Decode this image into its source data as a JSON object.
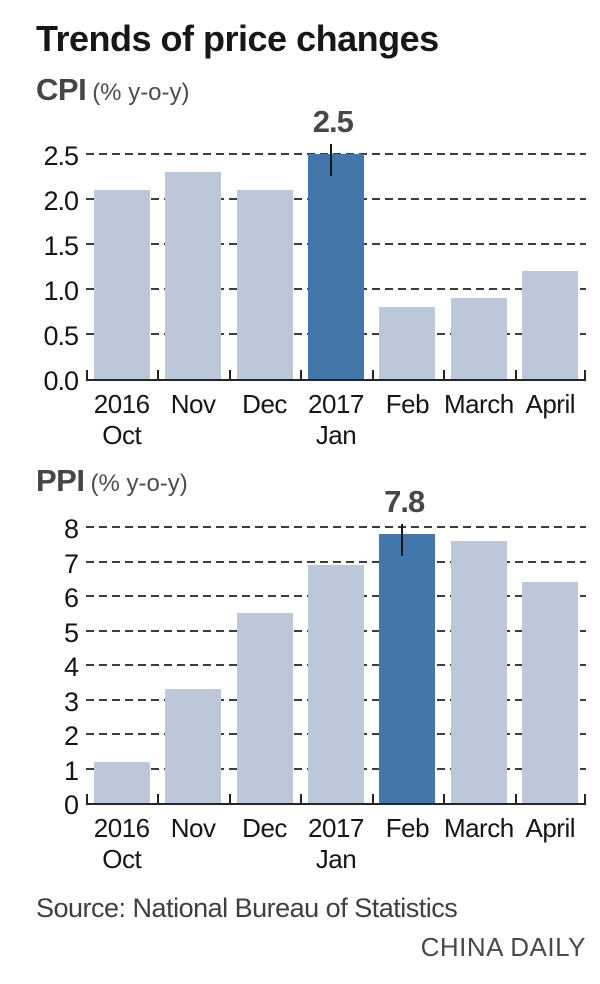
{
  "page": {
    "title": "Trends of price changes",
    "source": "Source: National Bureau of Statistics",
    "credit": "CHINA DAILY"
  },
  "colors": {
    "bar": "#bdc7da",
    "highlight": "#4377ab",
    "grid": "#3d3d3d",
    "axis": "#262626",
    "data_label": "#474747"
  },
  "chart_data": [
    {
      "type": "bar",
      "name": "cpi",
      "title": "CPI",
      "subtitle": "(% y-o-y)",
      "categories": [
        [
          "2016",
          "Oct"
        ],
        [
          "Nov"
        ],
        [
          "Dec"
        ],
        [
          "2017",
          "Jan"
        ],
        [
          "Feb"
        ],
        [
          "March"
        ],
        [
          "April"
        ]
      ],
      "values": [
        2.1,
        2.3,
        2.1,
        2.5,
        0.8,
        0.9,
        1.2
      ],
      "highlight_index": 3,
      "highlight_label": "2.5",
      "ylim": [
        0,
        2.5
      ],
      "ytick_step": 0.5,
      "ytick_labels": [
        "0.0",
        "0.5",
        "1.0",
        "1.5",
        "2.0",
        "2.5"
      ],
      "grid": "dashed horizontal",
      "legend": "none"
    },
    {
      "type": "bar",
      "name": "ppi",
      "title": "PPI",
      "subtitle": "(% y-o-y)",
      "categories": [
        [
          "2016",
          "Oct"
        ],
        [
          "Nov"
        ],
        [
          "Dec"
        ],
        [
          "2017",
          "Jan"
        ],
        [
          "Feb"
        ],
        [
          "March"
        ],
        [
          "April"
        ]
      ],
      "values": [
        1.2,
        3.3,
        5.5,
        6.9,
        7.8,
        7.6,
        6.4
      ],
      "highlight_index": 4,
      "highlight_label": "7.8",
      "ylim": [
        0,
        8
      ],
      "ytick_step": 1,
      "ytick_labels": [
        "0",
        "1",
        "2",
        "3",
        "4",
        "5",
        "6",
        "7",
        "8"
      ],
      "grid": "dashed horizontal",
      "legend": "none"
    }
  ]
}
